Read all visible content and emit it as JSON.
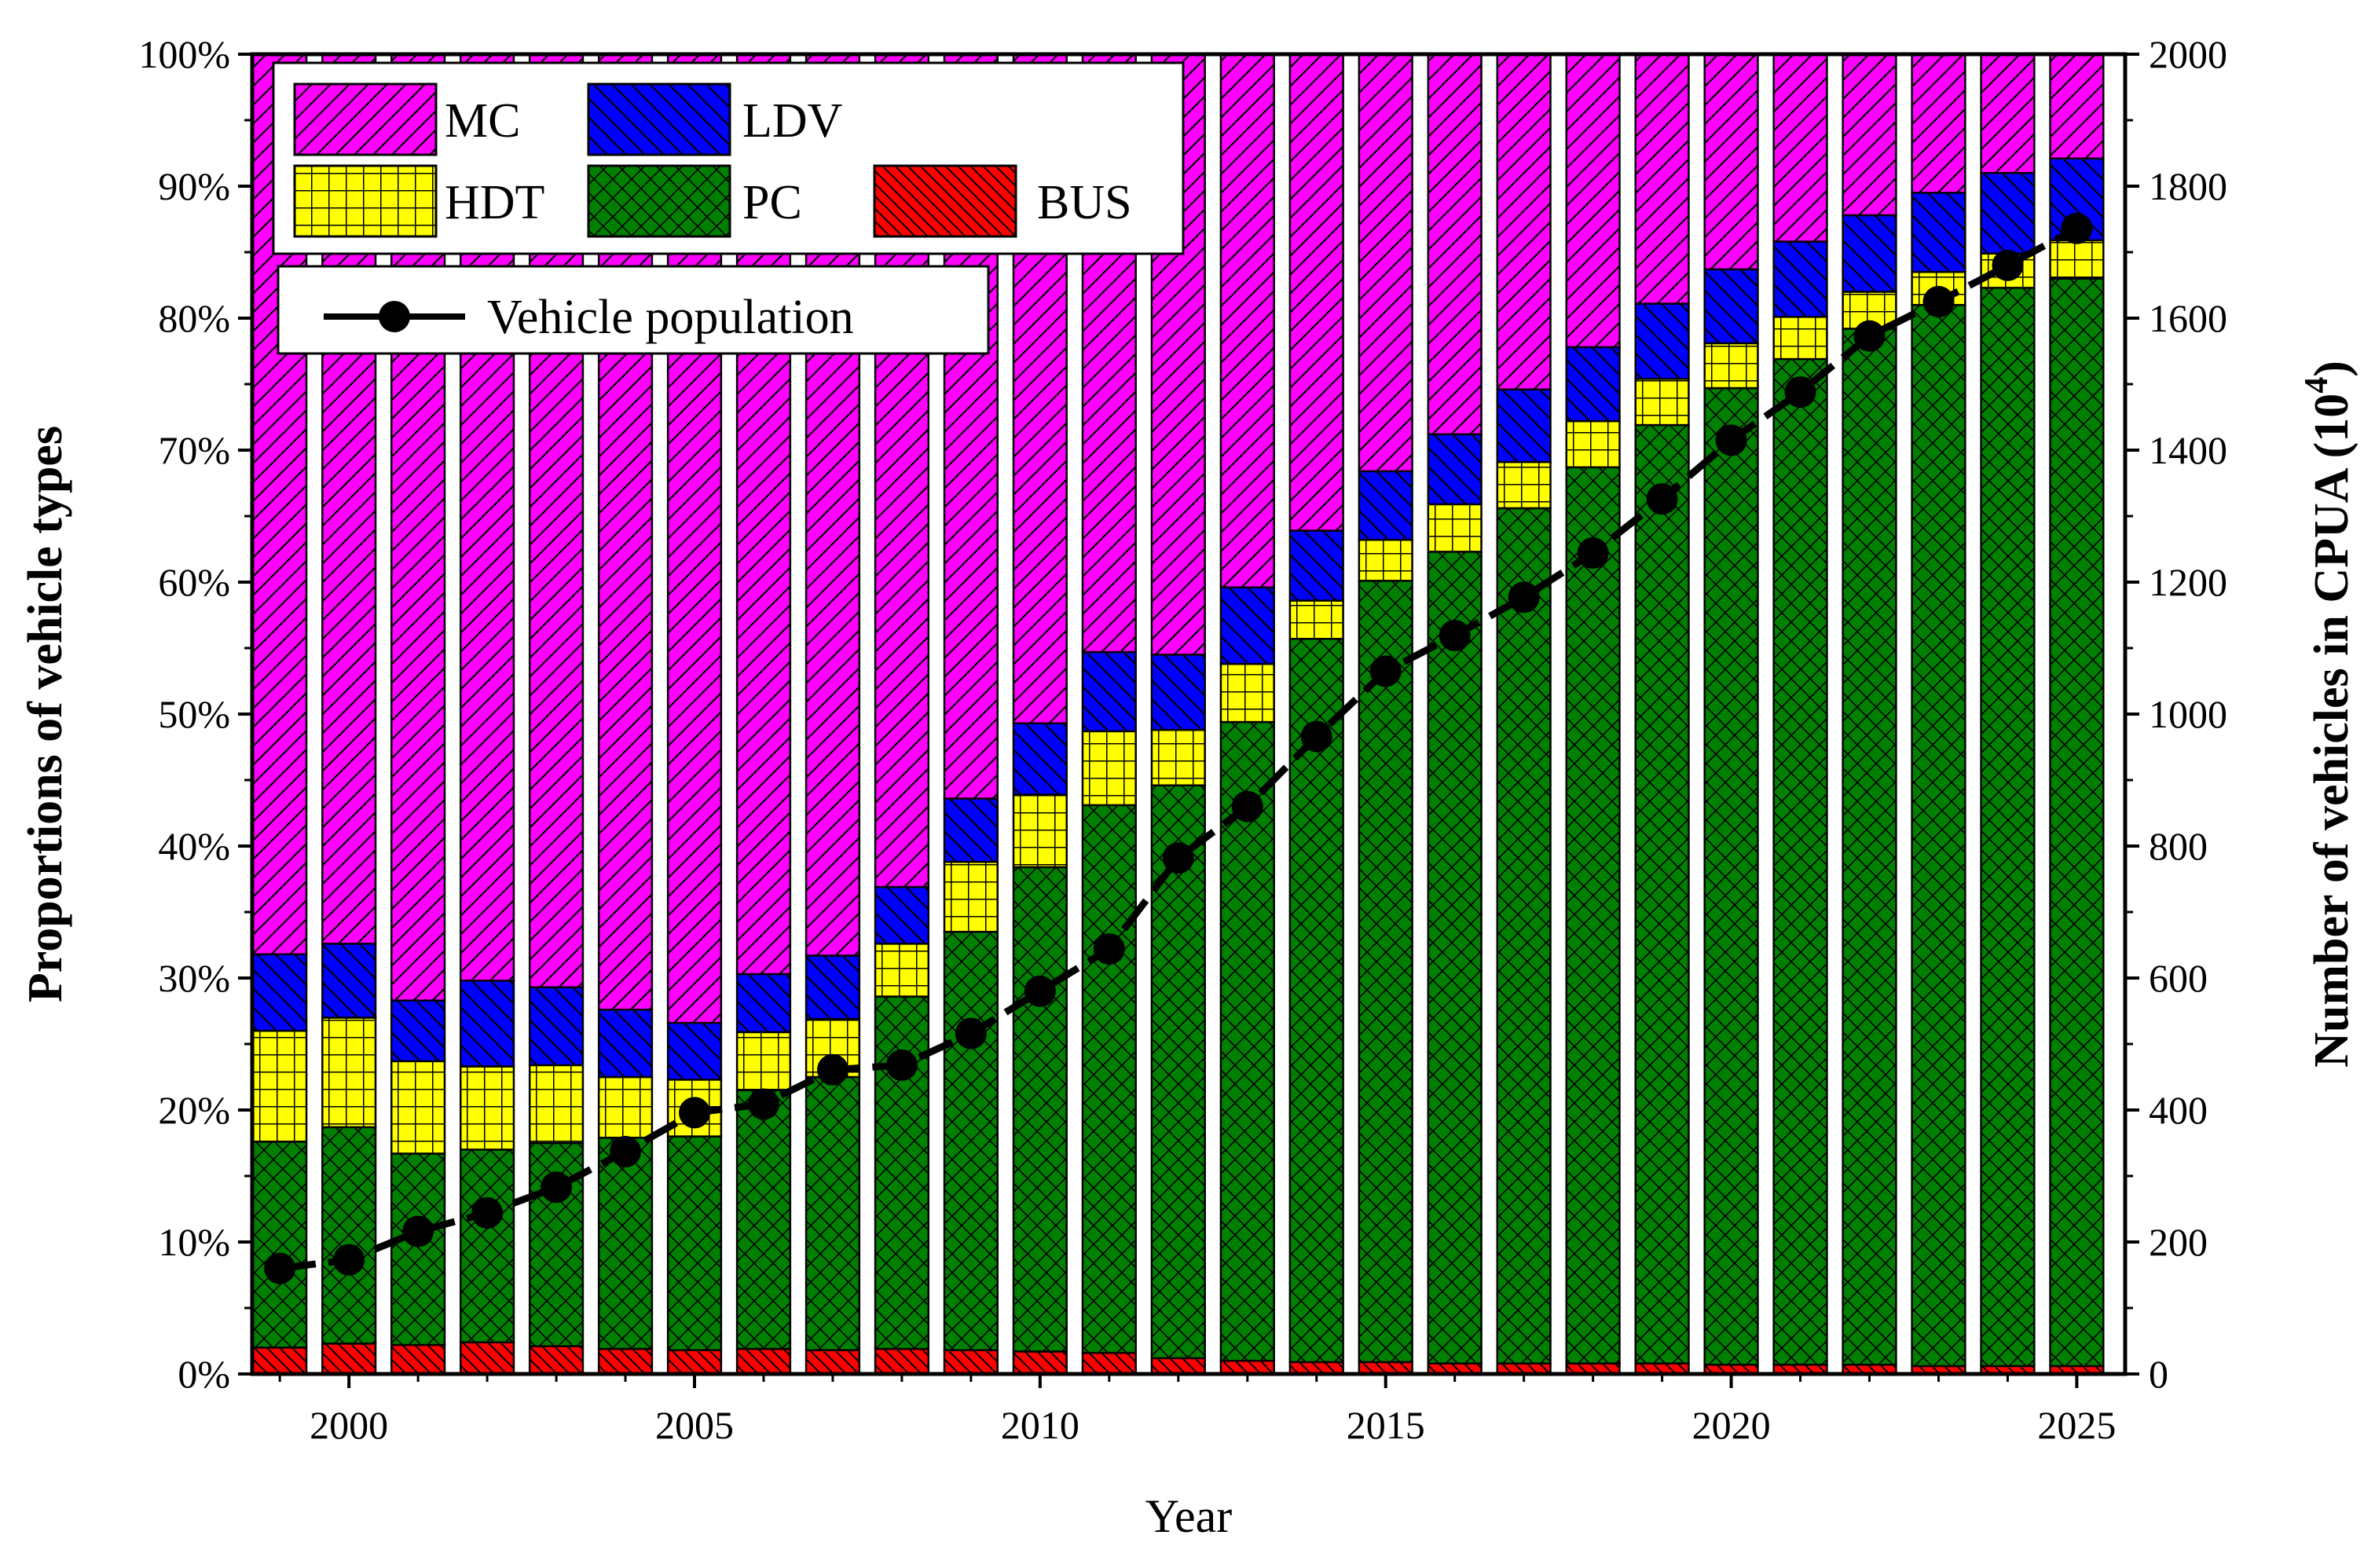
{
  "chart_data": {
    "type": "bar",
    "stacked": true,
    "title": "",
    "xlabel": "Year",
    "ylabel": "Proportions of vehicle types",
    "y2label": "Number of vehicles in CPUA (10",
    "y2label_exp": "4",
    "y2label_close": ")",
    "ylim": [
      0,
      100
    ],
    "y2lim": [
      0,
      2000
    ],
    "xlim": [
      1998.6,
      2025.7
    ],
    "x_ticks": [
      "2000",
      "2005",
      "2010",
      "2015",
      "2020",
      "2025"
    ],
    "y_ticks": [
      "0%",
      "10%",
      "20%",
      "30%",
      "40%",
      "50%",
      "60%",
      "70%",
      "80%",
      "90%",
      "100%"
    ],
    "y2_ticks": [
      "0",
      "200",
      "400",
      "600",
      "800",
      "1000",
      "1200",
      "1400",
      "1600",
      "1800",
      "2000"
    ],
    "categories": [
      1999,
      2000,
      2001,
      2002,
      2003,
      2004,
      2005,
      2006,
      2007,
      2008,
      2009,
      2010,
      2011,
      2012,
      2013,
      2014,
      2015,
      2016,
      2017,
      2018,
      2019,
      2020,
      2021,
      2022,
      2023,
      2024,
      2025
    ],
    "series": [
      {
        "name": "BUS",
        "color": "#ff0000",
        "pattern": "pat-bus",
        "values": [
          2.0,
          2.3,
          2.2,
          2.4,
          2.1,
          1.9,
          1.8,
          1.9,
          1.8,
          1.9,
          1.8,
          1.7,
          1.6,
          1.2,
          1.0,
          0.9,
          0.9,
          0.8,
          0.8,
          0.8,
          0.8,
          0.7,
          0.7,
          0.7,
          0.6,
          0.6,
          0.6
        ]
      },
      {
        "name": "PC",
        "color": "#008000",
        "pattern": "pat-pc",
        "values": [
          15.6,
          16.4,
          14.5,
          14.6,
          15.4,
          16.0,
          16.2,
          19.6,
          20.7,
          26.7,
          31.7,
          36.7,
          41.5,
          43.4,
          48.4,
          54.8,
          59.2,
          61.5,
          64.8,
          67.9,
          71.1,
          74.0,
          76.2,
          78.5,
          80.4,
          81.7,
          82.4
        ]
      },
      {
        "name": "HDT",
        "color": "#ffff00",
        "pattern": "pat-hdt",
        "values": [
          8.4,
          8.3,
          7.0,
          6.3,
          5.9,
          4.6,
          4.3,
          4.4,
          4.4,
          4.0,
          5.3,
          5.5,
          5.6,
          4.2,
          4.4,
          2.9,
          3.1,
          3.6,
          3.5,
          3.5,
          3.5,
          3.4,
          3.2,
          2.8,
          2.5,
          2.6,
          2.9
        ]
      },
      {
        "name": "LDV",
        "color": "#0000ff",
        "pattern": "pat-ldv",
        "values": [
          5.8,
          5.6,
          4.6,
          6.5,
          5.9,
          5.1,
          4.3,
          4.4,
          4.8,
          4.3,
          4.8,
          5.4,
          6.0,
          5.7,
          5.8,
          5.3,
          5.2,
          5.3,
          5.5,
          5.6,
          5.7,
          5.6,
          5.7,
          5.8,
          6.0,
          6.1,
          6.2
        ]
      },
      {
        "name": "MC",
        "color": "#ff00ff",
        "pattern": "pat-mc",
        "values": [
          68.2,
          67.4,
          71.7,
          70.2,
          70.7,
          72.4,
          73.4,
          69.7,
          68.3,
          63.1,
          56.4,
          50.7,
          45.3,
          45.5,
          40.4,
          36.1,
          31.6,
          28.8,
          25.4,
          22.2,
          18.9,
          16.3,
          14.2,
          12.2,
          10.5,
          9.0,
          7.9
        ]
      }
    ],
    "line_series": {
      "name": "Vehicle population",
      "axis": "right",
      "values": [
        160,
        173,
        216,
        244,
        283,
        337,
        396,
        409,
        461,
        468,
        516,
        580,
        644,
        782,
        860,
        966,
        1065,
        1119,
        1177,
        1244,
        1326,
        1415,
        1488,
        1573,
        1625,
        1680,
        1736
      ]
    },
    "legend": {
      "placement": "top-left",
      "row1": [
        "MC",
        "LDV"
      ],
      "row2": [
        "HDT",
        "PC",
        "BUS"
      ],
      "line_label": "Vehicle population"
    }
  }
}
